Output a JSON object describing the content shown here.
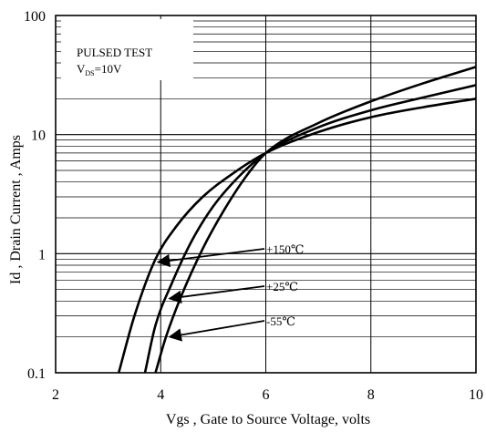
{
  "chart_data": {
    "type": "line",
    "title": "",
    "xlabel": "Vgs , Gate to Source Voltage,  volts",
    "ylabel": "Id , Drain Current ,  Amps",
    "xlim": [
      2,
      10
    ],
    "ylim": [
      0.1,
      100
    ],
    "y_scale": "log",
    "grid": true,
    "x_ticks": [
      "2",
      "4",
      "6",
      "8",
      "10"
    ],
    "y_ticks": [
      "0.1",
      "1",
      "10",
      "100"
    ],
    "annotation": {
      "line1": "PULSED   TEST",
      "line2_main": "V",
      "line2_sub": "DS",
      "line2_rest": "=10V"
    },
    "series": [
      {
        "name": "+150℃",
        "x": [
          3.2,
          3.5,
          3.9,
          4.3,
          4.8,
          5.4,
          6.0,
          7.0,
          8.0,
          9.0,
          10.0
        ],
        "y": [
          0.1,
          0.3,
          0.9,
          1.7,
          3.0,
          4.8,
          7.0,
          10.5,
          14.0,
          17.0,
          20.0
        ]
      },
      {
        "name": "+25℃",
        "x": [
          3.7,
          3.9,
          4.2,
          4.6,
          5.0,
          5.5,
          6.0,
          7.0,
          8.0,
          9.0,
          10.0
        ],
        "y": [
          0.1,
          0.25,
          0.55,
          1.3,
          2.5,
          4.5,
          7.0,
          11.5,
          16.0,
          20.5,
          26.0
        ]
      },
      {
        "name": "-55℃",
        "x": [
          3.9,
          4.1,
          4.4,
          4.8,
          5.2,
          5.6,
          6.0,
          7.0,
          8.0,
          9.0,
          10.0
        ],
        "y": [
          0.1,
          0.2,
          0.45,
          1.1,
          2.3,
          4.3,
          7.0,
          12.5,
          19.0,
          27.0,
          37.0
        ]
      }
    ]
  }
}
